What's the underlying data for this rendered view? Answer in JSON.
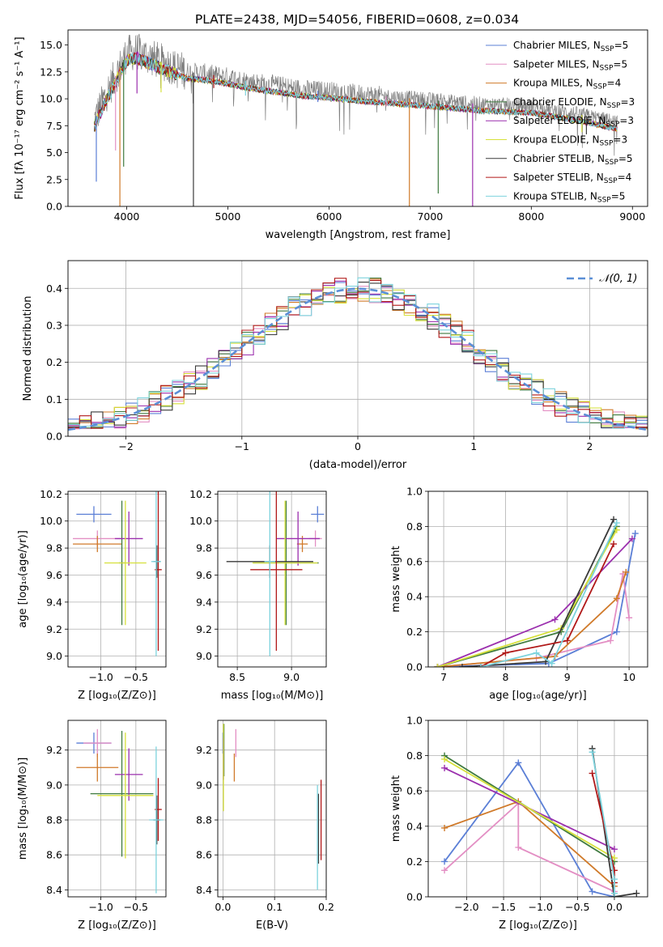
{
  "figure": {
    "title": "PLATE=2438, MJD=54056, FIBERID=0608, z=0.034"
  },
  "chart_data": [
    {
      "id": "spectrum",
      "type": "line",
      "title": "PLATE=2438, MJD=54056, FIBERID=0608, z=0.034",
      "xlabel": "wavelength [Angstrom, rest frame]",
      "ylabel": "Flux [fλ 10⁻¹⁷ erg cm⁻² s⁻¹ A⁻¹]",
      "xlim": [
        3420,
        9150
      ],
      "ylim": [
        0,
        16.4
      ],
      "xticks": [
        4000,
        5000,
        6000,
        7000,
        8000,
        9000
      ],
      "yticks": [
        0.0,
        2.5,
        5.0,
        7.5,
        10.0,
        12.5,
        15.0
      ],
      "grid": false,
      "legend_position": "top-right",
      "series": [
        {
          "name": "Chabrier MILES, N",
          "sub": "SSP",
          "suffix": "=5",
          "color": "#5b7fd6"
        },
        {
          "name": "Salpeter MILES, N",
          "sub": "SSP",
          "suffix": "=5",
          "color": "#e38fc4"
        },
        {
          "name": "Kroupa MILES, N",
          "sub": "SSP",
          "suffix": "=4",
          "color": "#d07a2a"
        },
        {
          "name": "Chabrier ELODIE, N",
          "sub": "SSP",
          "suffix": "=3",
          "color": "#3f7a3f"
        },
        {
          "name": "Salpeter ELODIE, N",
          "sub": "SSP",
          "suffix": "=3",
          "color": "#9b2fae"
        },
        {
          "name": "Kroupa ELODIE, N",
          "sub": "SSP",
          "suffix": "=3",
          "color": "#d6e03a"
        },
        {
          "name": "Chabrier STELIB, N",
          "sub": "SSP",
          "suffix": "=5",
          "color": "#3a3a3a"
        },
        {
          "name": "Salpeter STELIB, N",
          "sub": "SSP",
          "suffix": "=4",
          "color": "#b01818"
        },
        {
          "name": "Kroupa STELIB, N",
          "sub": "SSP",
          "suffix": "=5",
          "color": "#7dd3dd"
        }
      ],
      "continuum": {
        "x": [
          3680,
          3800,
          3900,
          4000,
          4100,
          4200,
          4400,
          4600,
          4800,
          5000,
          5200,
          5500,
          5800,
          6000,
          6300,
          6600,
          7000,
          7500,
          8000,
          8500,
          8850
        ],
        "y": [
          8.0,
          10.5,
          12.3,
          14.2,
          14.4,
          14.0,
          13.2,
          12.5,
          12.3,
          12.0,
          11.6,
          11.2,
          10.8,
          10.7,
          10.4,
          10.2,
          9.9,
          9.5,
          9.3,
          8.5,
          7.8
        ]
      },
      "dips": [
        {
          "x": 3700,
          "y": 2.3
        },
        {
          "x": 3890,
          "y": 5.2
        },
        {
          "x": 3933,
          "y": 0.0
        },
        {
          "x": 3970,
          "y": 3.7
        },
        {
          "x": 4102,
          "y": 10.5
        },
        {
          "x": 4340,
          "y": 10.6
        },
        {
          "x": 4660,
          "y": 0.0
        },
        {
          "x": 4861,
          "y": 11.0
        },
        {
          "x": 5175,
          "y": 10.3
        },
        {
          "x": 5890,
          "y": 9.7
        },
        {
          "x": 6565,
          "y": 9.3
        },
        {
          "x": 6795,
          "y": 0.0
        },
        {
          "x": 7080,
          "y": 1.2
        },
        {
          "x": 7420,
          "y": 0.0
        },
        {
          "x": 8500,
          "y": 6.9
        },
        {
          "x": 8545,
          "y": 6.7
        }
      ]
    },
    {
      "id": "residuals",
      "type": "step",
      "xlabel": "(data-model)/error",
      "ylabel": "Normed distribution",
      "xlim": [
        -2.5,
        2.5
      ],
      "ylim": [
        0.0,
        0.475
      ],
      "xticks": [
        -2,
        -1,
        0,
        1,
        2
      ],
      "yticks": [
        0.0,
        0.1,
        0.2,
        0.3,
        0.4
      ],
      "grid": true,
      "legend_position": "top-right",
      "legend_label": "𝒩(0, 1)",
      "gaussian": {
        "mean": 0,
        "sigma": 1,
        "color": "#5b8fd6"
      },
      "bin_width": 0.1
    },
    {
      "id": "age-vs-z",
      "type": "errorbar",
      "xlabel": "Z [log₁₀(Z/Z⊙)]",
      "ylabel": "age  [log₁₀(age/yr)]",
      "xlim": [
        -1.47,
        -0.07
      ],
      "ylim": [
        8.92,
        10.22
      ],
      "xticks": [
        -1.0,
        -0.5
      ],
      "yticks": [
        9.0,
        9.2,
        9.4,
        9.6,
        9.8,
        10.0,
        10.2
      ],
      "grid": true,
      "points": [
        {
          "series": "Chabrier MILES",
          "x": -1.1,
          "y": 10.05,
          "xerr": 0.25,
          "yerr": 0.06,
          "color": "#5b7fd6"
        },
        {
          "series": "Salpeter MILES",
          "x": -1.05,
          "y": 9.87,
          "xerr": 0.35,
          "yerr": 0.06,
          "color": "#e38fc4"
        },
        {
          "series": "Kroupa MILES",
          "x": -1.05,
          "y": 9.83,
          "xerr": 0.35,
          "yerr": 0.06,
          "color": "#d07a2a"
        },
        {
          "series": "Chabrier ELODIE",
          "x": -0.7,
          "y": 9.69,
          "xerr": 0.04,
          "yerr": 0.46,
          "color": "#3f7a3f"
        },
        {
          "series": "Salpeter ELODIE",
          "x": -0.6,
          "y": 9.87,
          "xerr": 0.2,
          "yerr": 0.2,
          "color": "#9b2fae"
        },
        {
          "series": "Kroupa ELODIE",
          "x": -0.65,
          "y": 9.69,
          "xerr": 0.3,
          "yerr": 0.46,
          "color": "#d6e03a"
        },
        {
          "series": "Chabrier STELIB",
          "x": -0.2,
          "y": 9.7,
          "xerr": 0.05,
          "yerr": 0.12,
          "color": "#3a3a3a"
        },
        {
          "series": "Salpeter STELIB",
          "x": -0.18,
          "y": 9.64,
          "xerr": 0.05,
          "yerr": 0.6,
          "color": "#b01818"
        },
        {
          "series": "Kroupa STELIB",
          "x": -0.21,
          "y": 9.7,
          "xerr": 0.07,
          "yerr": 0.7,
          "color": "#7dd3dd"
        }
      ]
    },
    {
      "id": "age-vs-mass",
      "type": "errorbar",
      "xlabel": "mass [log₁₀(M/M⊙)]",
      "ylabel": "",
      "xlim": [
        8.32,
        9.32
      ],
      "ylim": [
        8.92,
        10.22
      ],
      "xticks": [
        8.5,
        9.0
      ],
      "yticks": [
        9.0,
        9.2,
        9.4,
        9.6,
        9.8,
        10.0,
        10.2
      ],
      "grid": true,
      "points": [
        {
          "series": "Chabrier MILES",
          "x": 9.24,
          "y": 10.05,
          "xerr": 0.06,
          "yerr": 0.06,
          "color": "#5b7fd6"
        },
        {
          "series": "Salpeter MILES",
          "x": 9.22,
          "y": 9.87,
          "xerr": 0.06,
          "yerr": 0.06,
          "color": "#e38fc4"
        },
        {
          "series": "Kroupa MILES",
          "x": 9.1,
          "y": 9.83,
          "xerr": 0.05,
          "yerr": 0.06,
          "color": "#d07a2a"
        },
        {
          "series": "Chabrier ELODIE",
          "x": 8.95,
          "y": 9.69,
          "xerr": 0.3,
          "yerr": 0.46,
          "color": "#3f7a3f"
        },
        {
          "series": "Salpeter ELODIE",
          "x": 9.06,
          "y": 9.87,
          "xerr": 0.2,
          "yerr": 0.2,
          "color": "#9b2fae"
        },
        {
          "series": "Kroupa ELODIE",
          "x": 8.94,
          "y": 9.69,
          "xerr": 0.3,
          "yerr": 0.46,
          "color": "#d6e03a"
        },
        {
          "series": "Chabrier STELIB",
          "x": 8.8,
          "y": 9.7,
          "xerr": 0.4,
          "yerr": 0.12,
          "color": "#3a3a3a"
        },
        {
          "series": "Salpeter STELIB",
          "x": 8.86,
          "y": 9.64,
          "xerr": 0.24,
          "yerr": 0.6,
          "color": "#b01818"
        },
        {
          "series": "Kroupa STELIB",
          "x": 8.8,
          "y": 9.7,
          "xerr": 0.05,
          "yerr": 0.7,
          "color": "#7dd3dd"
        }
      ]
    },
    {
      "id": "weight-vs-age",
      "type": "line",
      "xlabel": "age  [log₁₀(age/yr)]",
      "ylabel": "mass weight",
      "xlim": [
        6.75,
        10.3
      ],
      "ylim": [
        0.0,
        1.0
      ],
      "xticks": [
        7,
        8,
        9,
        10
      ],
      "yticks": [
        0.0,
        0.2,
        0.4,
        0.6,
        0.8,
        1.0
      ],
      "grid": true,
      "series": [
        {
          "name": "Chabrier MILES",
          "color": "#5b7fd6",
          "x": [
            6.9,
            8.7,
            9.8,
            10.1
          ],
          "y": [
            0.0,
            0.02,
            0.2,
            0.76
          ]
        },
        {
          "name": "Salpeter MILES",
          "color": "#e38fc4",
          "x": [
            6.9,
            8.5,
            9.7,
            9.9,
            10.0
          ],
          "y": [
            0.0,
            0.05,
            0.15,
            0.53,
            0.28
          ]
        },
        {
          "name": "Kroupa MILES",
          "color": "#d07a2a",
          "x": [
            6.9,
            8.8,
            9.8,
            9.95
          ],
          "y": [
            0.0,
            0.06,
            0.39,
            0.54
          ]
        },
        {
          "name": "Chabrier ELODIE",
          "color": "#3f7a3f",
          "x": [
            6.9,
            8.9,
            9.8
          ],
          "y": [
            0.0,
            0.2,
            0.8
          ]
        },
        {
          "name": "Salpeter ELODIE",
          "color": "#9b2fae",
          "x": [
            6.9,
            8.8,
            10.05
          ],
          "y": [
            0.0,
            0.27,
            0.73
          ]
        },
        {
          "name": "Kroupa ELODIE",
          "color": "#d6e03a",
          "x": [
            6.9,
            8.9,
            9.8
          ],
          "y": [
            0.0,
            0.22,
            0.78
          ]
        },
        {
          "name": "Chabrier STELIB",
          "color": "#3a3a3a",
          "x": [
            7.3,
            8.65,
            9.75
          ],
          "y": [
            0.0,
            0.03,
            0.84
          ]
        },
        {
          "name": "Salpeter STELIB",
          "color": "#b01818",
          "x": [
            7.6,
            8.0,
            9.0,
            9.75
          ],
          "y": [
            0.0,
            0.08,
            0.15,
            0.7
          ]
        },
        {
          "name": "Kroupa STELIB",
          "color": "#7dd3dd",
          "x": [
            7.6,
            8.5,
            8.75,
            9.8
          ],
          "y": [
            0.0,
            0.08,
            0.02,
            0.82
          ]
        }
      ]
    },
    {
      "id": "mass-vs-z",
      "type": "errorbar",
      "xlabel": "Z [log₁₀(Z/Z⊙)]",
      "ylabel": "mass [log₁₀(M/M⊙)]",
      "xlim": [
        -1.47,
        -0.07
      ],
      "ylim": [
        8.36,
        9.37
      ],
      "xticks": [
        -1.0,
        -0.5
      ],
      "yticks": [
        8.4,
        8.6,
        8.8,
        9.0,
        9.2
      ],
      "grid": true,
      "points": [
        {
          "series": "Chabrier MILES",
          "x": -1.1,
          "y": 9.24,
          "xerr": 0.25,
          "yerr": 0.06,
          "color": "#5b7fd6"
        },
        {
          "series": "Salpeter MILES",
          "x": -1.05,
          "y": 9.24,
          "xerr": 0.2,
          "yerr": 0.08,
          "color": "#e38fc4"
        },
        {
          "series": "Kroupa MILES",
          "x": -1.05,
          "y": 9.1,
          "xerr": 0.3,
          "yerr": 0.08,
          "color": "#d07a2a"
        },
        {
          "series": "Chabrier ELODIE",
          "x": -0.7,
          "y": 8.95,
          "xerr": 0.45,
          "yerr": 0.36,
          "color": "#3f7a3f"
        },
        {
          "series": "Salpeter ELODIE",
          "x": -0.6,
          "y": 9.06,
          "xerr": 0.2,
          "yerr": 0.15,
          "color": "#9b2fae"
        },
        {
          "series": "Kroupa ELODIE",
          "x": -0.65,
          "y": 8.94,
          "xerr": 0.4,
          "yerr": 0.36,
          "color": "#d6e03a"
        },
        {
          "series": "Chabrier STELIB",
          "x": -0.2,
          "y": 8.8,
          "xerr": 0.05,
          "yerr": 0.14,
          "color": "#3a3a3a"
        },
        {
          "series": "Salpeter STELIB",
          "x": -0.18,
          "y": 8.86,
          "xerr": 0.05,
          "yerr": 0.18,
          "color": "#b01818"
        },
        {
          "series": "Kroupa STELIB",
          "x": -0.21,
          "y": 8.8,
          "xerr": 0.1,
          "yerr": 0.42,
          "color": "#7dd3dd"
        }
      ]
    },
    {
      "id": "mass-vs-ebv",
      "type": "errorbar",
      "xlabel": "E(B-V)",
      "ylabel": "",
      "xlim": [
        -0.01,
        0.2
      ],
      "ylim": [
        8.36,
        9.37
      ],
      "xticks": [
        0.0,
        0.1,
        0.2
      ],
      "yticks": [
        8.4,
        8.6,
        8.8,
        9.0,
        9.2
      ],
      "grid": true,
      "points": [
        {
          "series": "Chabrier MILES",
          "x": 0.0,
          "y": 9.24,
          "xerr": 0.0,
          "yerr": 0.06,
          "color": "#5b7fd6"
        },
        {
          "series": "Salpeter MILES",
          "x": 0.025,
          "y": 9.24,
          "xerr": 0.0,
          "yerr": 0.08,
          "color": "#e38fc4"
        },
        {
          "series": "Kroupa MILES",
          "x": 0.022,
          "y": 9.1,
          "xerr": 0.0,
          "yerr": 0.08,
          "color": "#d07a2a"
        },
        {
          "series": "Chabrier ELODIE",
          "x": 0.002,
          "y": 9.2,
          "xerr": 0.0,
          "yerr": 0.15,
          "color": "#3f7a3f"
        },
        {
          "series": "Salpeter ELODIE",
          "x": 0.001,
          "y": 9.15,
          "xerr": 0.0,
          "yerr": 0.12,
          "color": "#9b2fae"
        },
        {
          "series": "Kroupa ELODIE",
          "x": 0.001,
          "y": 9.1,
          "xerr": 0.0,
          "yerr": 0.25,
          "color": "#d6e03a"
        },
        {
          "series": "Chabrier STELIB",
          "x": 0.185,
          "y": 8.75,
          "xerr": 0.0,
          "yerr": 0.2,
          "color": "#3a3a3a"
        },
        {
          "series": "Salpeter STELIB",
          "x": 0.19,
          "y": 8.8,
          "xerr": 0.0,
          "yerr": 0.23,
          "color": "#b01818"
        },
        {
          "series": "Kroupa STELIB",
          "x": 0.183,
          "y": 8.7,
          "xerr": 0.0,
          "yerr": 0.3,
          "color": "#7dd3dd"
        }
      ]
    },
    {
      "id": "weight-vs-z",
      "type": "line",
      "xlabel": "Z [log₁₀(Z/Z⊙)]",
      "ylabel": "mass weight",
      "xlim": [
        -2.52,
        0.45
      ],
      "ylim": [
        0.0,
        1.0
      ],
      "xticks": [
        -2.0,
        -1.5,
        -1.0,
        -0.5,
        0.0
      ],
      "yticks": [
        0.0,
        0.2,
        0.4,
        0.6,
        0.8,
        1.0
      ],
      "grid": true,
      "series": [
        {
          "name": "Chabrier MILES",
          "color": "#5b7fd6",
          "x": [
            -2.3,
            -1.3,
            -0.3,
            0.0
          ],
          "y": [
            0.2,
            0.76,
            0.03,
            0.0
          ]
        },
        {
          "name": "Salpeter MILES",
          "color": "#e38fc4",
          "x": [
            -2.3,
            -1.3,
            -1.3,
            0.0
          ],
          "y": [
            0.15,
            0.53,
            0.28,
            0.03
          ]
        },
        {
          "name": "Kroupa MILES",
          "color": "#d07a2a",
          "x": [
            -2.3,
            -1.3,
            0.0
          ],
          "y": [
            0.39,
            0.54,
            0.06
          ]
        },
        {
          "name": "Chabrier ELODIE",
          "color": "#3f7a3f",
          "x": [
            -2.3,
            0.0
          ],
          "y": [
            0.8,
            0.2
          ]
        },
        {
          "name": "Salpeter ELODIE",
          "color": "#9b2fae",
          "x": [
            -2.3,
            0.0
          ],
          "y": [
            0.73,
            0.27
          ]
        },
        {
          "name": "Kroupa ELODIE",
          "color": "#d6e03a",
          "x": [
            -2.3,
            0.0
          ],
          "y": [
            0.78,
            0.22
          ]
        },
        {
          "name": "Chabrier STELIB",
          "color": "#3a3a3a",
          "x": [
            -0.3,
            0.0,
            0.3
          ],
          "y": [
            0.84,
            0.0,
            0.02
          ]
        },
        {
          "name": "Salpeter STELIB",
          "color": "#b01818",
          "x": [
            -0.3,
            0.0,
            0.0
          ],
          "y": [
            0.7,
            0.15,
            0.08
          ]
        },
        {
          "name": "Kroupa STELIB",
          "color": "#7dd3dd",
          "x": [
            -0.3,
            0.0,
            0.0
          ],
          "y": [
            0.82,
            0.1,
            0.02
          ]
        }
      ]
    }
  ]
}
